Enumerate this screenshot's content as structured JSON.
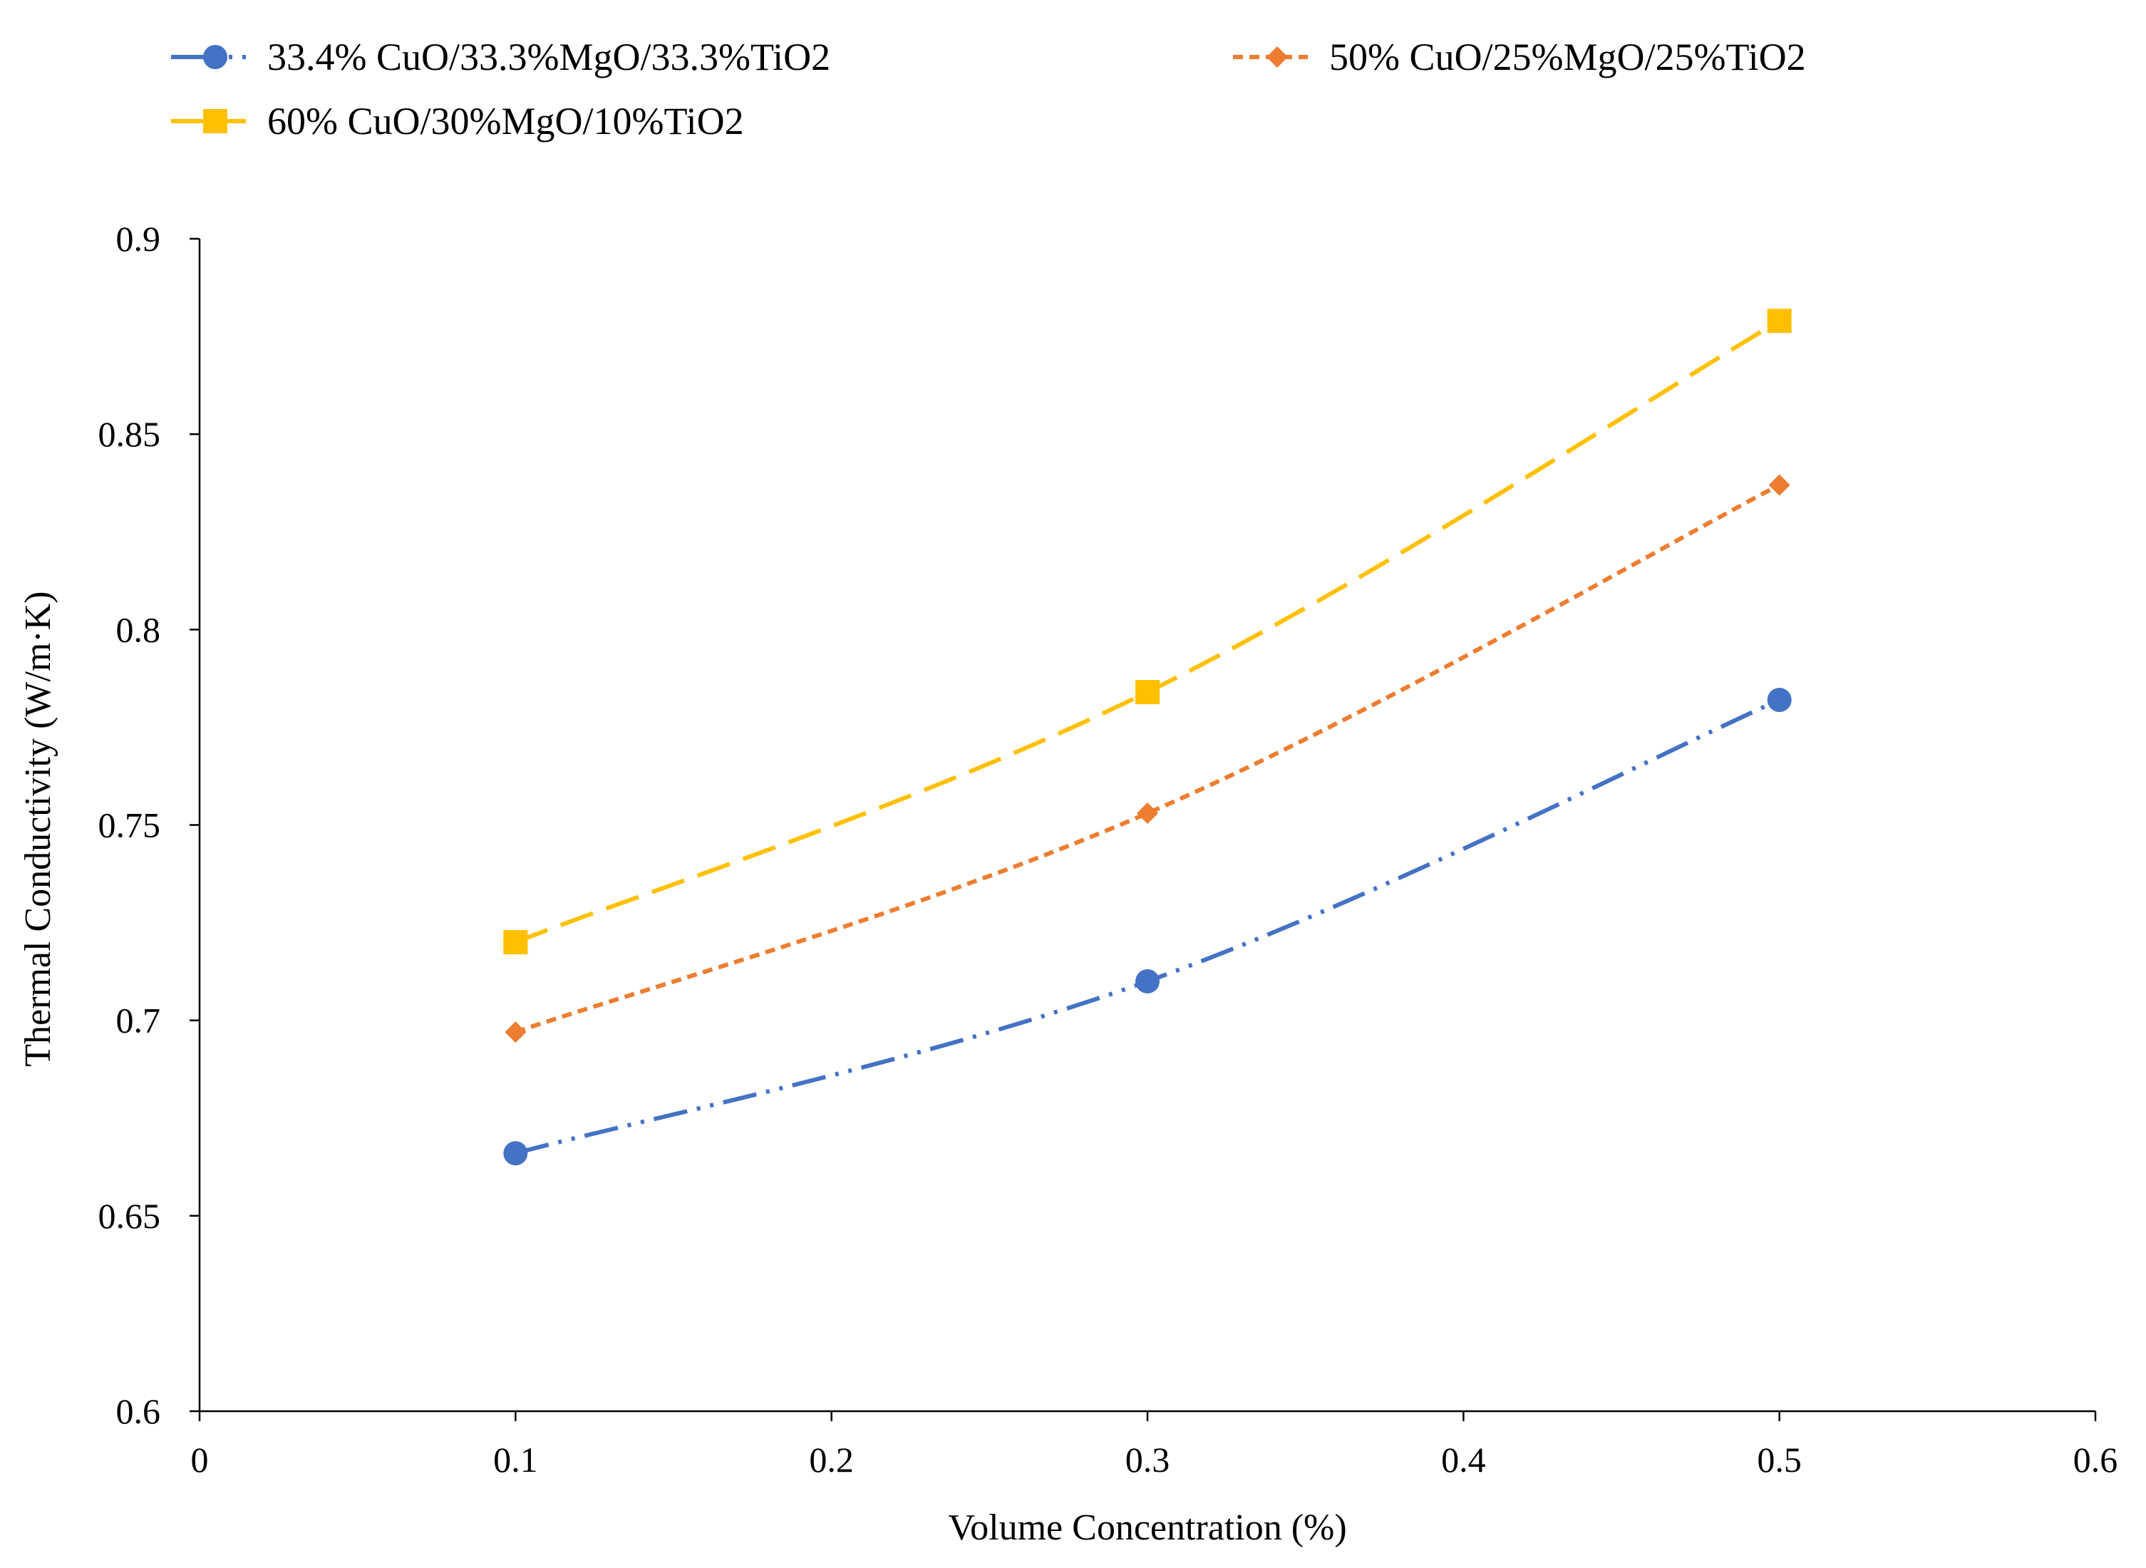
{
  "chart_data": {
    "type": "line",
    "title": "",
    "xlabel": "Volume Concentration (%)",
    "ylabel": "Thermal Conductivity (W/m·K)",
    "xlim": [
      0,
      0.6
    ],
    "ylim": [
      0.6,
      0.9
    ],
    "x_ticks": [
      0,
      0.1,
      0.2,
      0.3,
      0.4,
      0.5,
      0.6
    ],
    "x_tick_labels": [
      "0",
      "0.1",
      "0.2",
      "0.3",
      "0.4",
      "0.5",
      "0.6"
    ],
    "y_ticks": [
      0.6,
      0.65,
      0.7,
      0.75,
      0.8,
      0.85,
      0.9
    ],
    "y_tick_labels": [
      "0.6",
      "0.65",
      "0.7",
      "0.75",
      "0.8",
      "0.85",
      "0.9"
    ],
    "grid": false,
    "legend_position": "top",
    "x": [
      0.1,
      0.3,
      0.5
    ],
    "series": [
      {
        "name": "33.4% CuO/33.3%MgO/33.3%TiO2",
        "values": [
          0.666,
          0.71,
          0.782
        ],
        "color": "#4472C4",
        "marker": "circle",
        "line_style": "long-dash-dot-dot"
      },
      {
        "name": "50% CuO/25%MgO/25%TiO2",
        "values": [
          0.697,
          0.753,
          0.837
        ],
        "color": "#ED7D31",
        "marker": "diamond",
        "line_style": "short-dash"
      },
      {
        "name": "60% CuO/30%MgO/10%TiO2",
        "values": [
          0.72,
          0.784,
          0.879
        ],
        "color": "#FFC000",
        "marker": "square",
        "line_style": "long-dash"
      }
    ]
  }
}
